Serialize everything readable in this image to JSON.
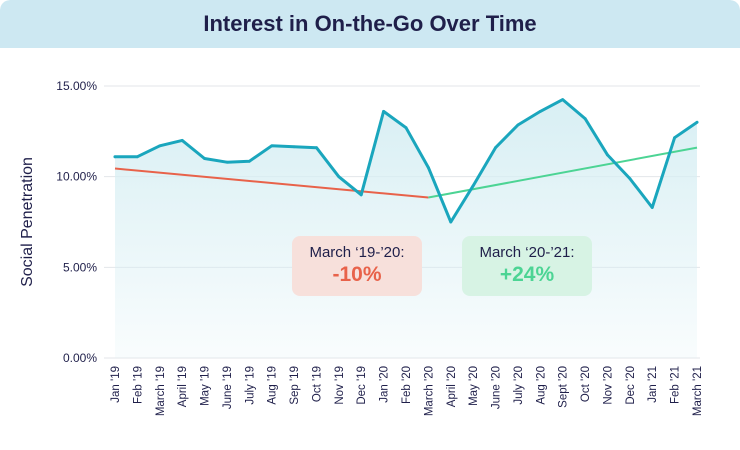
{
  "title": "Interest in On-the-Go Over Time",
  "colors": {
    "header_bg": "#cde8f2",
    "series_line": "#1aa6bd",
    "area_fill": "#d6eef3",
    "trend_decline": "#e8624a",
    "trend_growth": "#4cd494",
    "text": "#1f1f4a",
    "callout_decline_bg": "#f7e0db",
    "callout_growth_bg": "#d7f3e4"
  },
  "callouts": {
    "decline": {
      "label": "March ‘19-’20:",
      "value": "-10%"
    },
    "growth": {
      "label": "March ‘20-’21:",
      "value": "+24%"
    }
  },
  "chart_data": {
    "type": "line",
    "ylabel": "Social Penetration",
    "xlabel": "",
    "ylim": [
      0,
      15
    ],
    "y_ticks": [
      "0.00%",
      "5.00%",
      "10.00%",
      "15.00%"
    ],
    "y_tick_values": [
      0,
      5,
      10,
      15
    ],
    "grid": "horizontal",
    "categories": [
      "Jan '19",
      "Feb '19",
      "March '19",
      "April '19",
      "May '19",
      "June '19",
      "July '19",
      "Aug '19",
      "Sep '19",
      "Oct '19",
      "Nov '19",
      "Dec '19",
      "Jan '20",
      "Feb '20",
      "March '20",
      "April '20",
      "May '20",
      "June '20",
      "July '20",
      "Aug '20",
      "Sept '20",
      "Oct '20",
      "Nov '20",
      "Dec '20",
      "Jan '21",
      "Feb '21",
      "March '21"
    ],
    "series": [
      {
        "values": [
          11.1,
          11.1,
          11.7,
          12.0,
          11.0,
          10.8,
          10.85,
          11.7,
          11.65,
          11.6,
          10.0,
          9.0,
          13.6,
          12.7,
          10.5,
          7.5,
          9.5,
          11.6,
          12.85,
          13.6,
          14.25,
          13.2,
          11.2,
          9.9,
          8.3,
          12.15,
          13.0
        ]
      }
    ],
    "trend_lines": [
      {
        "from": "Jan '19",
        "from_value": 10.45,
        "to": "March '20",
        "to_value": 8.85
      },
      {
        "from": "March '20",
        "from_value": 8.85,
        "to": "March '21",
        "to_value": 11.6
      }
    ]
  }
}
